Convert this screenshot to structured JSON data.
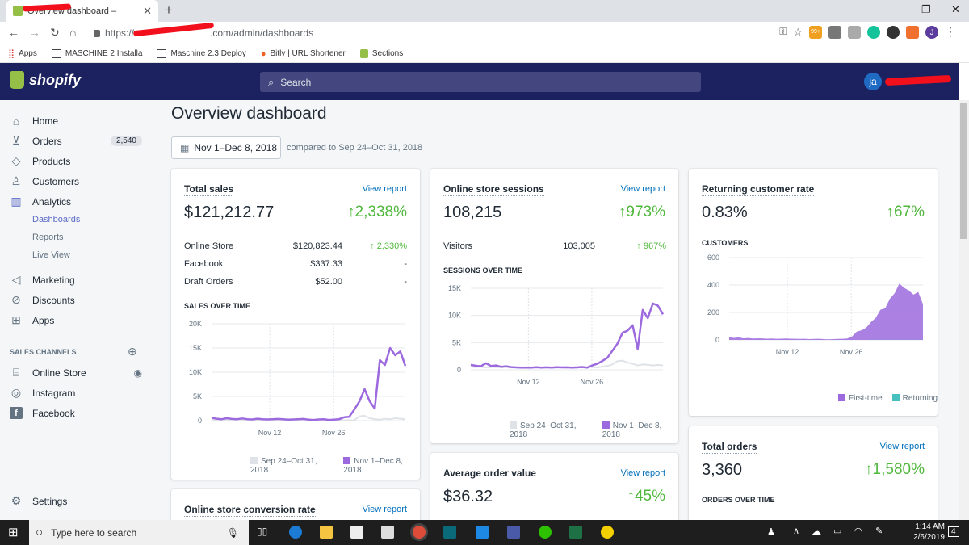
{
  "browser": {
    "tab_title": "Overview dashboard –",
    "url_prefix": "https://",
    "url_suffix": ".com/admin/dashboards",
    "bookmarks": [
      "Apps",
      "MASCHINE 2 Installa",
      "Maschine 2.3 Deploy",
      "Bitly | URL Shortener",
      "Sections"
    ],
    "ext_badge": "99+",
    "profile_initial": "J"
  },
  "topbar": {
    "brand": "shopify",
    "search_placeholder": "Search",
    "avatar_initials": "ja"
  },
  "sidebar": {
    "items": [
      {
        "label": "Home",
        "icon": "home-icon"
      },
      {
        "label": "Orders",
        "icon": "orders-icon",
        "badge": "2,540"
      },
      {
        "label": "Products",
        "icon": "tag-icon"
      },
      {
        "label": "Customers",
        "icon": "person-icon"
      },
      {
        "label": "Analytics",
        "icon": "bar-chart-icon"
      }
    ],
    "analytics_sub": [
      "Dashboards",
      "Reports",
      "Live View"
    ],
    "items2": [
      {
        "label": "Marketing",
        "icon": "megaphone-icon"
      },
      {
        "label": "Discounts",
        "icon": "discount-icon"
      },
      {
        "label": "Apps",
        "icon": "apps-icon"
      }
    ],
    "sales_channels_heading": "SALES CHANNELS",
    "channels": [
      "Online Store",
      "Instagram",
      "Facebook"
    ],
    "settings": "Settings"
  },
  "page": {
    "title": "Overview dashboard",
    "date_range": "Nov 1–Dec 8, 2018",
    "compared": "compared to Sep 24–Oct 31, 2018",
    "view_report": "View report"
  },
  "cards": {
    "total_sales": {
      "title": "Total sales",
      "value": "$121,212.77",
      "change": "2,338%",
      "rows": [
        {
          "label": "Online Store",
          "value": "$120,823.44",
          "change": "2,330%"
        },
        {
          "label": "Facebook",
          "value": "$337.33",
          "change": "-"
        },
        {
          "label": "Draft Orders",
          "value": "$52.00",
          "change": "-"
        }
      ],
      "chart_title": "SALES OVER TIME"
    },
    "sessions": {
      "title": "Online store sessions",
      "value": "108,215",
      "change": "973%",
      "row": {
        "label": "Visitors",
        "value": "103,005",
        "change": "967%"
      },
      "chart_title": "SESSIONS OVER TIME"
    },
    "returning": {
      "title": "Returning customer rate",
      "value": "0.83%",
      "change": "67%",
      "chart_title": "CUSTOMERS"
    },
    "total_orders": {
      "title": "Total orders",
      "value": "3,360",
      "change": "1,580%",
      "chart_title": "ORDERS OVER TIME"
    },
    "aov": {
      "title": "Average order value",
      "value": "$36.32",
      "change": "45%"
    },
    "conversion": {
      "title": "Online store conversion rate"
    }
  },
  "legends": {
    "prev": "Sep 24–Oct 31, 2018",
    "curr": "Nov 1–Dec 8, 2018",
    "first": "First-time",
    "returning": "Returning"
  },
  "colors": {
    "current": "#9c6ade",
    "previous": "#dfe3e8",
    "first_time": "#9c6ade",
    "returning_color": "#47c1bf"
  },
  "chart_data": [
    {
      "type": "line",
      "title": "SALES OVER TIME",
      "x_ticks": [
        "Nov 12",
        "Nov 26"
      ],
      "y_ticks": [
        "0",
        "5K",
        "10K",
        "15K",
        "20K"
      ],
      "ylim": [
        0,
        20000
      ],
      "series": [
        {
          "name": "Sep 24–Oct 31, 2018",
          "values": [
            200,
            150,
            100,
            150,
            120,
            80,
            100,
            90,
            120,
            80,
            100,
            150,
            60,
            80,
            100,
            90,
            60,
            80,
            100,
            50,
            80,
            90,
            60,
            100,
            80,
            90,
            60,
            80,
            100,
            900,
            1000,
            500,
            300,
            200,
            400,
            300,
            500,
            400,
            300
          ]
        },
        {
          "name": "Nov 1–Dec 8, 2018",
          "values": [
            600,
            400,
            300,
            500,
            350,
            300,
            450,
            300,
            250,
            400,
            300,
            250,
            300,
            350,
            300,
            200,
            250,
            300,
            350,
            200,
            150,
            250,
            300,
            150,
            200,
            300,
            700,
            800,
            2300,
            4000,
            6500,
            4000,
            2500,
            12500,
            11500,
            15000,
            13500,
            14300,
            11300
          ]
        }
      ]
    },
    {
      "type": "line",
      "title": "SESSIONS OVER TIME",
      "x_ticks": [
        "Nov 12",
        "Nov 26"
      ],
      "y_ticks": [
        "0",
        "5K",
        "10K",
        "15K"
      ],
      "ylim": [
        0,
        15000
      ],
      "series": [
        {
          "name": "Sep 24–Oct 31, 2018",
          "values": [
            600,
            500,
            550,
            450,
            500,
            500,
            450,
            500,
            400,
            450,
            400,
            500,
            450,
            400,
            450,
            400,
            450,
            500,
            450,
            400,
            450,
            500,
            400,
            450,
            500,
            450,
            600,
            700,
            1000,
            1600,
            1700,
            1300,
            1100,
            800,
            1000,
            900,
            800,
            900,
            800
          ]
        },
        {
          "name": "Nov 1–Dec 8, 2018",
          "values": [
            900,
            750,
            650,
            1200,
            700,
            800,
            550,
            650,
            500,
            450,
            420,
            400,
            420,
            480,
            420,
            460,
            420,
            480,
            450,
            460,
            420,
            440,
            520,
            400,
            800,
            1100,
            1600,
            2200,
            3500,
            4800,
            6800,
            7200,
            8200,
            3800,
            11000,
            9500,
            12200,
            11800,
            10200
          ]
        }
      ]
    },
    {
      "type": "area",
      "title": "CUSTOMERS",
      "x_ticks": [
        "Nov 12",
        "Nov 26"
      ],
      "y_ticks": [
        "0",
        "200",
        "400",
        "600"
      ],
      "ylim": [
        0,
        600
      ],
      "series": [
        {
          "name": "First-time",
          "values": [
            20,
            15,
            18,
            12,
            14,
            10,
            12,
            11,
            9,
            10,
            8,
            9,
            10,
            9,
            8,
            7,
            8,
            6,
            7,
            8,
            6,
            5,
            6,
            7,
            8,
            10,
            25,
            60,
            70,
            90,
            130,
            160,
            220,
            230,
            300,
            340,
            410,
            380,
            360,
            330,
            350,
            260
          ]
        },
        {
          "name": "Returning",
          "values": [
            0,
            0,
            0,
            0,
            0,
            0,
            0,
            0,
            0,
            0,
            0,
            0,
            0,
            0,
            0,
            0,
            0,
            0,
            0,
            0,
            0,
            0,
            0,
            0,
            0,
            0,
            0,
            0,
            0,
            0,
            1,
            1,
            1,
            1,
            2,
            2,
            2,
            2,
            2,
            2,
            2,
            2
          ]
        }
      ]
    }
  ],
  "taskbar": {
    "search_placeholder": "Type here to search",
    "time": "1:14 AM",
    "date": "2/6/2019",
    "notifications": "4"
  }
}
